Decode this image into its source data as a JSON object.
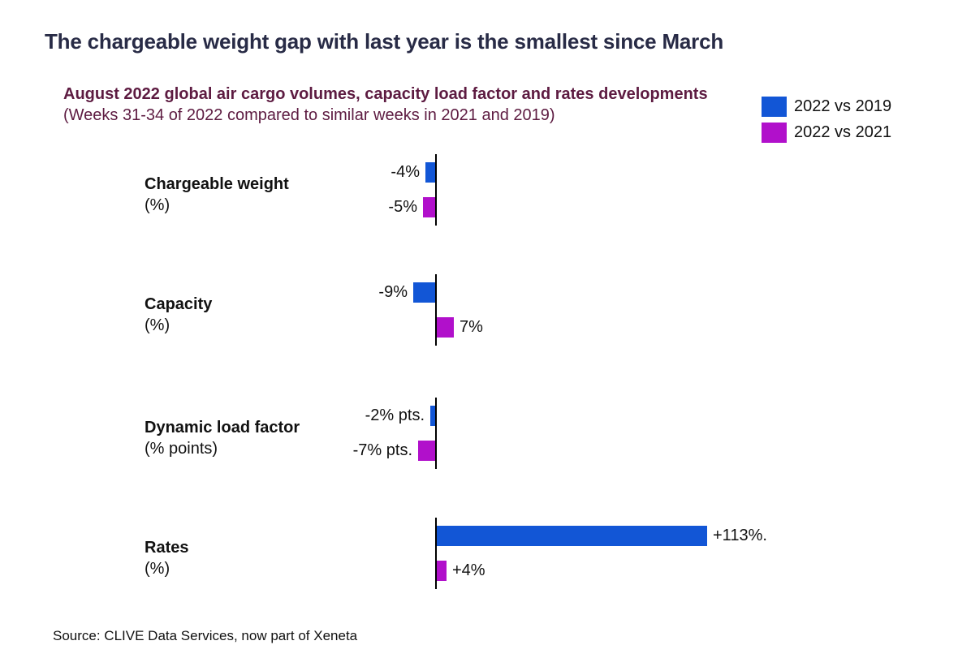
{
  "page": {
    "title": "The chargeable weight gap with last year is the smallest since March",
    "subtitle_line1": "August 2022 global air cargo volumes, capacity load factor and rates developments",
    "subtitle_line2": "(Weeks 31-34 of 2022 compared to similar weeks in 2021 and 2019)",
    "source": "Source: CLIVE Data Services, now part of Xeneta"
  },
  "colors": {
    "title_text": "#282B46",
    "subtitle_text": "#5D1B41",
    "series_2022_vs_2019": "#1256D6",
    "series_2022_vs_2021": "#B110CB",
    "axis": "#000000",
    "body_text": "#111111"
  },
  "legend": {
    "position": "top-right",
    "items": [
      {
        "label": "2022 vs 2019",
        "color": "#1256D6"
      },
      {
        "label": "2022 vs 2021",
        "color": "#B110CB"
      }
    ]
  },
  "chart_data": {
    "type": "bar",
    "orientation": "horizontal",
    "baseline": "zero-axis",
    "grid": "off",
    "value_range_hint": [
      -9,
      113
    ],
    "series_names": [
      "2022 vs 2019",
      "2022 vs 2021"
    ],
    "rows": [
      {
        "category": "Chargeable weight",
        "unit": "(%)",
        "bars": [
          {
            "series": "2022 vs 2019",
            "value": -4,
            "label": "-4%"
          },
          {
            "series": "2022 vs 2021",
            "value": -5,
            "label": "-5%"
          }
        ]
      },
      {
        "category": "Capacity",
        "unit": "(%)",
        "bars": [
          {
            "series": "2022 vs 2019",
            "value": -9,
            "label": "-9%"
          },
          {
            "series": "2022 vs 2021",
            "value": 7,
            "label": "7%"
          }
        ]
      },
      {
        "category": "Dynamic load factor",
        "unit": "(% points)",
        "bars": [
          {
            "series": "2022 vs 2019",
            "value": -2,
            "label": "-2% pts."
          },
          {
            "series": "2022 vs 2021",
            "value": -7,
            "label": "-7% pts."
          }
        ]
      },
      {
        "category": "Rates",
        "unit": "(%)",
        "bars": [
          {
            "series": "2022 vs 2019",
            "value": 113,
            "label": "+113%."
          },
          {
            "series": "2022 vs 2021",
            "value": 4,
            "label": "+4%"
          }
        ]
      }
    ]
  }
}
